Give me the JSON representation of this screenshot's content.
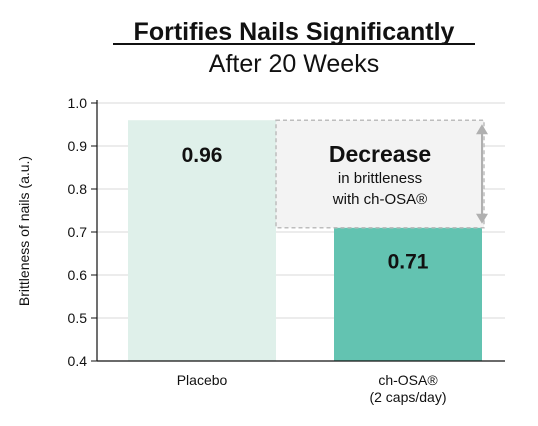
{
  "chart_data": {
    "type": "bar",
    "title": "Fortifies Nails Significantly",
    "subtitle": "After 20 Weeks",
    "ylabel": "Brittleness of nails (a.u.)",
    "xlabel": "",
    "ylim": [
      0.4,
      1.0
    ],
    "yticks": [
      0.4,
      0.5,
      0.6,
      0.7,
      0.8,
      0.9,
      1.0
    ],
    "ytick_labels": [
      "0.4",
      "0.5",
      "0.6",
      "0.7",
      "0.8",
      "0.9",
      "1.0"
    ],
    "grid": true,
    "categories": [
      {
        "label_lines": [
          "Placebo"
        ]
      },
      {
        "label_lines": [
          "ch-OSA®",
          "(2 caps/day)"
        ]
      }
    ],
    "values": [
      0.96,
      0.71
    ],
    "value_labels": [
      "0.96",
      "0.71"
    ],
    "colors": [
      "#dff0ea",
      "#63c3b1"
    ],
    "annotation": {
      "heading": "Decrease",
      "line1": "in brittleness",
      "line2": "with ch-OSA®"
    }
  }
}
